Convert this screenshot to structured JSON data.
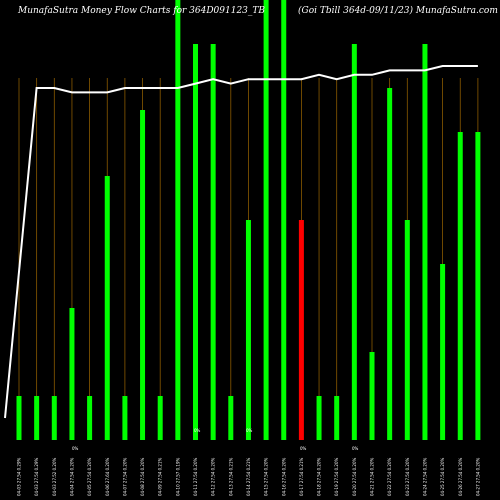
{
  "chart_data": {
    "type": "bar",
    "title_left": "MunafaSutra  Money Flow  Charts for 364D091123_TB",
    "title_right": "(Goi   Tbill 364d-09/11/23) MunafaSutra.com",
    "ylim": [
      0,
      100
    ],
    "colors": {
      "up": "#00ff00",
      "down": "#ff0000",
      "line": "#ffffff",
      "grid": "#8a5a00",
      "background": "#000000"
    },
    "categories": [
      "04-03 27.54 0.29%",
      "04-03 27.54 0.29%",
      "04-03 27.52 0.20%",
      "04-04 27.54 0.20%",
      "04-05 27.54 0.20%",
      "04-06 27.64 0.20%",
      "04-07 27.54 0.20%",
      "04-08 27.54 0.20%",
      "04-09 27.54 0.21%",
      "04-10 27.57 0.19%",
      "04-11 27.54 0.20%",
      "04-12 27.54 0.20%",
      "04-13 27.54 0.21%",
      "04-14 27.54 0.21%",
      "04-15 27.54 0.20%",
      "04-16 27.54 0.20%",
      "04-17 27.54 0.21%",
      "04-18 27.54 0.20%",
      "04-19 27.54 0.20%",
      "04-20 27.54 0.20%",
      "04-21 27.54 0.20%",
      "04-22 27.54 0.20%",
      "04-23 27.54 0.20%",
      "04-24 27.54 0.20%",
      "04-25 27.54 0.20%",
      "04-26 27.54 0.20%",
      "04-27 27.54 0.20%"
    ],
    "values": [
      10,
      10,
      10,
      30,
      10,
      60,
      10,
      75,
      10,
      100,
      90,
      90,
      10,
      50,
      100,
      100,
      50,
      10,
      10,
      90,
      20,
      80,
      50,
      90,
      40,
      70,
      70
    ],
    "bar_colors": [
      "up",
      "up",
      "up",
      "up",
      "up",
      "up",
      "up",
      "up",
      "up",
      "up",
      "up",
      "up",
      "up",
      "up",
      "up",
      "up",
      "down",
      "up",
      "up",
      "up",
      "up",
      "up",
      "up",
      "up",
      "up",
      "up",
      "up"
    ],
    "line_values": [
      5,
      80,
      80,
      79,
      79,
      79,
      80,
      80,
      80,
      80,
      81,
      82,
      81,
      82,
      82,
      82,
      82,
      83,
      82,
      83,
      83,
      84,
      84,
      84,
      85,
      85,
      85
    ],
    "small_labels": [
      "0%",
      "0%",
      "0%",
      "0%",
      "0%"
    ]
  }
}
